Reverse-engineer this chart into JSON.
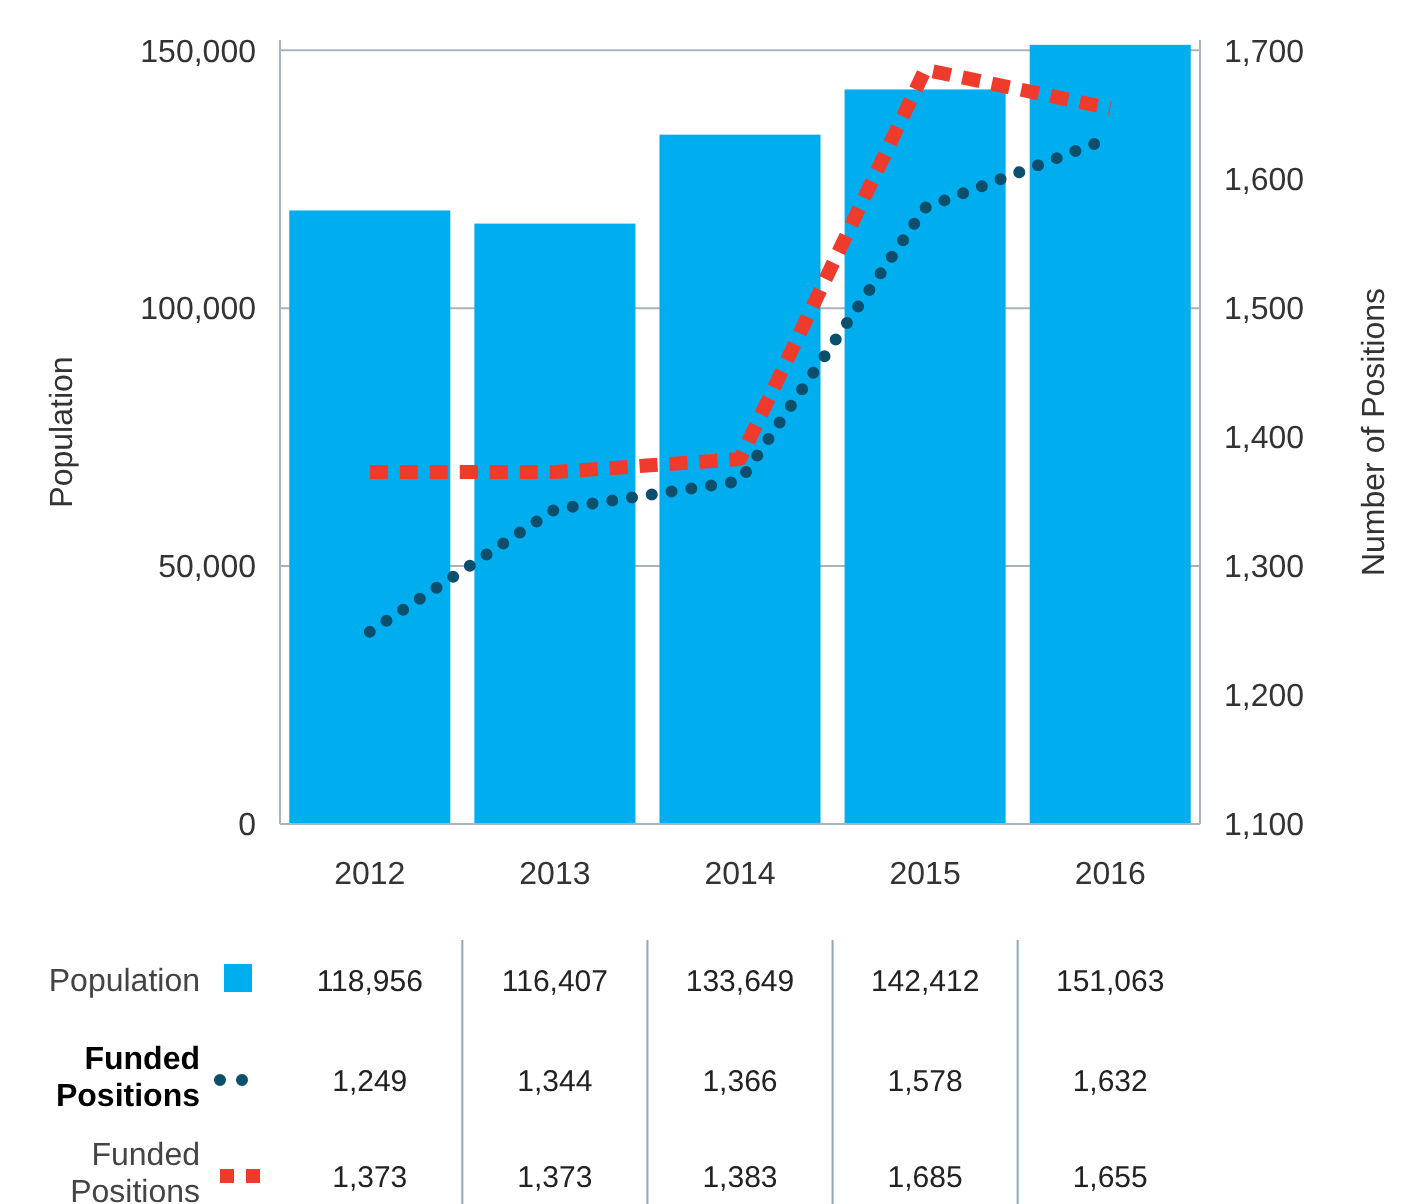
{
  "chart_data": {
    "type": "bar",
    "ylabel": "Population",
    "y2label": "Number of Positions",
    "categories": [
      "2012",
      "2013",
      "2014",
      "2015",
      "2016"
    ],
    "ylim": [
      0,
      152000
    ],
    "yticks": [
      {
        "value": 0,
        "label": "0"
      },
      {
        "value": 50000,
        "label": "50,000"
      },
      {
        "value": 100000,
        "label": "100,000"
      },
      {
        "value": 150000,
        "label": "150,000"
      }
    ],
    "y2lim": [
      1100,
      1708
    ],
    "y2ticks": [
      {
        "value": 1100,
        "label": "1,100"
      },
      {
        "value": 1200,
        "label": "1,200"
      },
      {
        "value": 1300,
        "label": "1,300"
      },
      {
        "value": 1400,
        "label": "1,400"
      },
      {
        "value": 1500,
        "label": "1,500"
      },
      {
        "value": 1600,
        "label": "1,600"
      },
      {
        "value": 1700,
        "label": "1,700"
      }
    ],
    "grid": "y",
    "legend": "bottom",
    "series": [
      {
        "name": "Population",
        "color": "#00aeef",
        "values": [
          118956,
          116407,
          133649,
          142412,
          151063
        ],
        "value_labels": [
          "118,956",
          "116,407",
          "133,649",
          "142,412",
          "151,063"
        ]
      },
      {
        "name": "Funded Positions",
        "type": "line",
        "axis": "y2",
        "color": "#0b4f6c",
        "line_style": "dotted",
        "marker": "none",
        "values": [
          1249,
          1344,
          1366,
          1578,
          1632
        ],
        "value_labels": [
          "1,249",
          "1,344",
          "1,366",
          "1,578",
          "1,632"
        ]
      },
      {
        "name": "Funded Positions",
        "type": "line",
        "axis": "y2",
        "color": "#ef3b2c",
        "line_style": "dashed",
        "marker": "none",
        "values": [
          1373,
          1373,
          1383,
          1685,
          1655
        ],
        "value_labels": [
          "1,373",
          "1,373",
          "1,383",
          "1,685",
          "1,655"
        ]
      }
    ]
  }
}
